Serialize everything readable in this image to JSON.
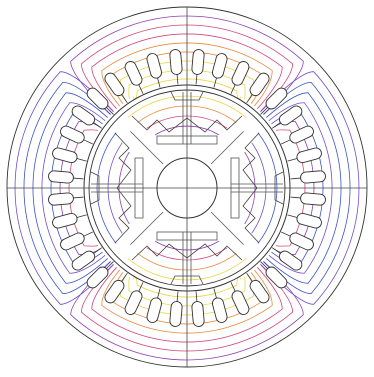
{
  "figure": {
    "kind": "motor cross-section magnetic field plot",
    "stator_slot_count": 36,
    "rotor_pole_count": 4,
    "palette": {
      "background": "#ffffff",
      "outline": "#333333",
      "axis": "#444444",
      "flux_outer": "#8e3fb0",
      "flux_mid": "#d2457a",
      "flux_warm": "#e8893a",
      "flux_inner": "#ecd43a",
      "flux_blue": "#3c52c8",
      "flux_violet": "#6f4fd0"
    }
  }
}
